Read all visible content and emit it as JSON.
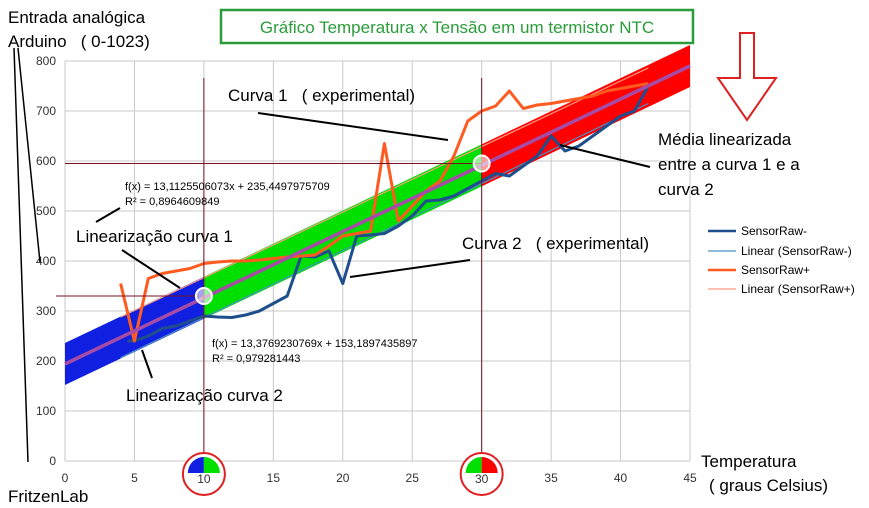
{
  "chart_data": {
    "type": "line",
    "title": "Gráfico Temperatura x Tensão em um termistor NTC",
    "ylabel_line1": "Entrada analógica",
    "ylabel_line2": "Arduino   ( 0-1023)",
    "xlabel_line1": "Temperatura",
    "xlabel_line2": "( graus Celsius)",
    "credit": "FritzenLab",
    "xlim": [
      0,
      45
    ],
    "ylim": [
      0,
      800
    ],
    "x_ticks": [
      "0",
      "5",
      "10",
      "15",
      "20",
      "25",
      "30",
      "35",
      "40",
      "45"
    ],
    "y_ticks": [
      "0",
      "100",
      "200",
      "300",
      "400",
      "500",
      "600",
      "700",
      "800"
    ],
    "grid": true,
    "legend_position": "right",
    "legend": [
      "SensorRaw-",
      "Linear (SensorRaw-)",
      "SensorRaw+",
      "Linear (SensorRaw+)"
    ],
    "colors": {
      "sensor_minus": "#1f4e8c",
      "sensor_plus": "#ff5a1f",
      "linear_minus": "#4a90c8",
      "linear_plus": "#ff9a80",
      "mean": "#a64ca6",
      "band_low": "#1020e0",
      "band_mid": "#00e000",
      "band_high": "#ff0000",
      "annotation_box": "#2a9d3a",
      "marker_line": "#7a1020",
      "circle": "#e02020"
    },
    "series": [
      {
        "name": "SensorRaw-",
        "x": [
          4.5,
          5,
          6,
          7,
          8,
          9,
          10,
          11,
          12,
          13,
          14,
          15,
          16,
          17,
          18,
          19,
          20,
          21,
          22,
          23,
          24,
          25,
          26,
          27,
          28,
          29,
          30,
          31,
          32,
          33,
          34,
          35,
          36,
          37,
          38,
          39,
          40,
          41,
          42
        ],
        "y": [
          240,
          240,
          250,
          265,
          270,
          280,
          290,
          288,
          287,
          292,
          300,
          315,
          330,
          410,
          408,
          420,
          355,
          450,
          452,
          455,
          470,
          490,
          520,
          522,
          530,
          545,
          560,
          575,
          570,
          590,
          610,
          650,
          620,
          630,
          650,
          670,
          690,
          700,
          750
        ]
      },
      {
        "name": "SensorRaw+",
        "x": [
          4,
          5,
          6,
          7,
          8,
          9,
          10,
          11,
          12,
          13,
          14,
          15,
          16,
          17,
          18,
          19,
          20,
          21,
          22,
          23,
          24,
          25,
          26,
          27,
          28,
          29,
          30,
          31,
          32,
          33,
          34,
          35,
          36,
          37,
          38,
          39,
          40,
          41,
          42
        ],
        "y": [
          355,
          240,
          365,
          375,
          380,
          385,
          395,
          398,
          400,
          400,
          402,
          405,
          408,
          410,
          412,
          430,
          450,
          455,
          460,
          635,
          480,
          510,
          540,
          560,
          610,
          680,
          700,
          710,
          740,
          705,
          712,
          715,
          720,
          725,
          730,
          740,
          745,
          750,
          755
        ]
      }
    ],
    "fits": [
      {
        "label": "Linear (SensorRaw+)",
        "equation": "f(x) = 13,1125506073x + 235,4497975709",
        "r2": "R² = 0,8964609849",
        "slope": 13.1125506073,
        "intercept": 235.4497975709
      },
      {
        "label": "Linear (SensorRaw-)",
        "equation": "f(x) = 13,3769230769x + 153,1897435897",
        "r2": "R² = 0,979281443",
        "slope": 13.3769230769,
        "intercept": 153.1897435897
      }
    ],
    "mean_line": {
      "x": [
        0,
        45
      ],
      "y": [
        194,
        790
      ]
    },
    "markers": [
      {
        "x": 10,
        "y": 330
      },
      {
        "x": 30,
        "y": 595
      }
    ],
    "annotations": {
      "curve1": "Curva 1   ( experimental)",
      "curve2": "Curva 2   ( experimental)",
      "lin1": "Linearização curva 1",
      "lin2": "Linearização curva 2",
      "mean_line1": "Média linearizada",
      "mean_line2": "entre a curva 1 e a",
      "mean_line3": "curva 2"
    }
  }
}
